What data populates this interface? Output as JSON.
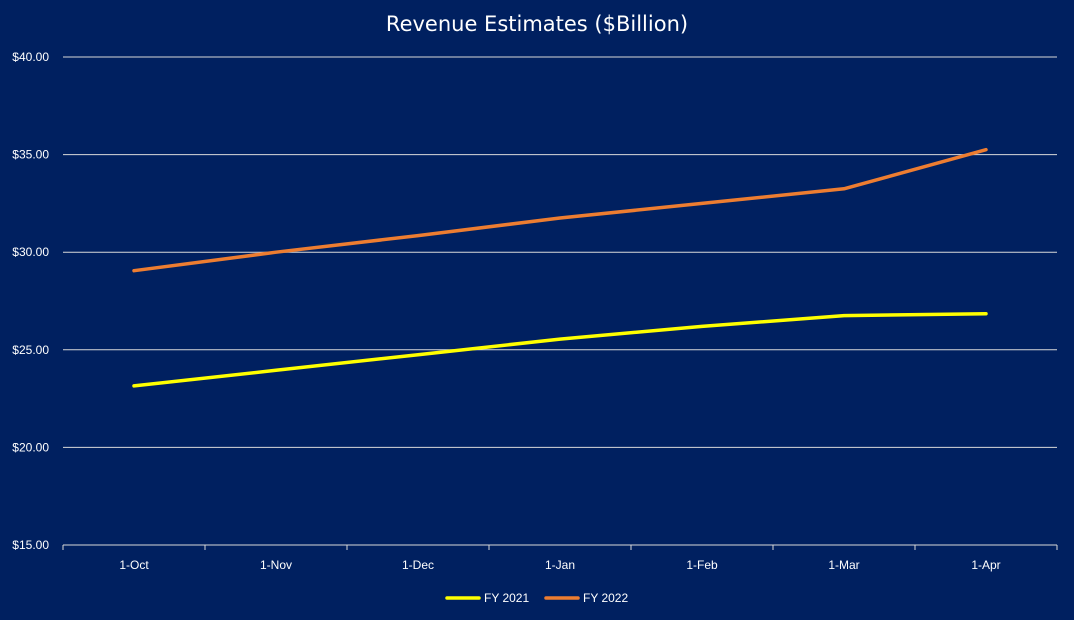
{
  "chart_data": {
    "type": "line",
    "title": "Revenue Estimates ($Billion)",
    "xlabel": "",
    "ylabel": "",
    "categories": [
      "1-Oct",
      "1-Nov",
      "1-Dec",
      "1-Jan",
      "1-Feb",
      "1-Mar",
      "1-Apr"
    ],
    "ylim": [
      15,
      40
    ],
    "y_ticks": [
      15,
      20,
      25,
      30,
      35,
      40
    ],
    "y_tick_labels": [
      "$15.00",
      "$20.00",
      "$25.00",
      "$30.00",
      "$35.00",
      "$40.00"
    ],
    "grid": true,
    "legend_position": "bottom",
    "background_color": "#002060",
    "series": [
      {
        "name": "FY 2021",
        "color": "#ffff00",
        "values": [
          23.15,
          23.95,
          24.75,
          25.55,
          26.2,
          26.75,
          26.85
        ]
      },
      {
        "name": "FY 2022",
        "color": "#ed7d31",
        "values": [
          29.05,
          30.0,
          30.85,
          31.75,
          32.5,
          33.25,
          35.25
        ]
      }
    ]
  }
}
